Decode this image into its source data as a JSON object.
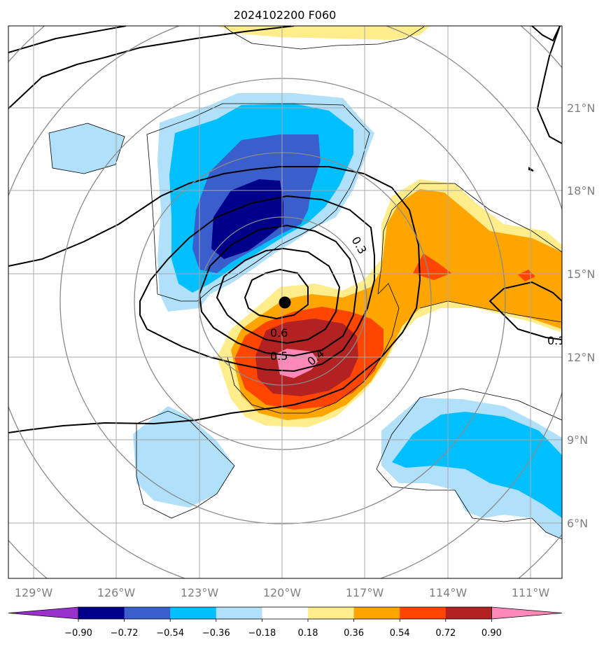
{
  "title": "2024102200 F060",
  "map": {
    "lon_labels": [
      "129°W",
      "126°W",
      "123°W",
      "120°W",
      "117°W",
      "114°W",
      "111°W"
    ],
    "lat_labels": [
      "21°N",
      "18°N",
      "15°N",
      "12°N",
      "9°N",
      "6°N"
    ],
    "center_marker": {
      "lon": -120.0,
      "lat": 13.9
    },
    "contour_labels": [
      "0.3",
      "0.6",
      "0.5",
      "0.4",
      "0.1"
    ]
  },
  "colorbar": {
    "ticks": [
      "−0.90",
      "−0.72",
      "−0.54",
      "−0.36",
      "−0.18",
      "0.18",
      "0.36",
      "0.54",
      "0.72",
      "0.90"
    ],
    "colors": [
      "#9932cc",
      "#00008b",
      "#3a5fcd",
      "#00bfff",
      "#b0e0fa",
      "#ffffff",
      "#ffec8b",
      "#ffa500",
      "#ff4500",
      "#b22222",
      "#ff88b8"
    ]
  }
}
